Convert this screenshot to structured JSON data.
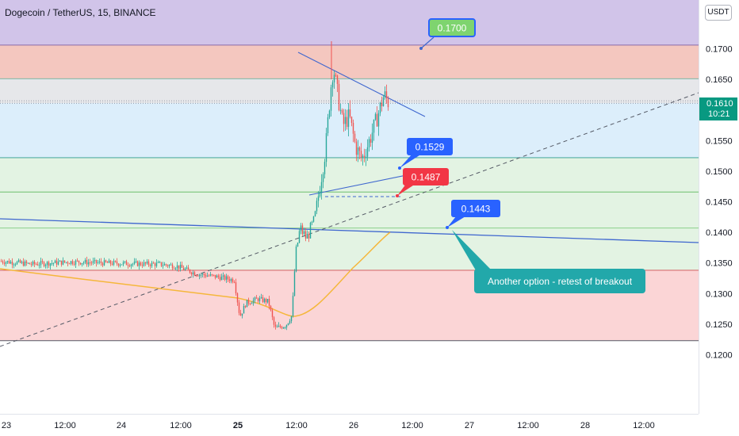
{
  "header": {
    "symbol_title": "Dogecoin / TetherUS, 15, BINANCE",
    "currency": "USDT"
  },
  "colors": {
    "candle_up": "#26a69a",
    "candle_down": "#ef5350",
    "zone_purple": "#d1c4e9",
    "zone_red": "#f4c7bf",
    "zone_grey": "#e6e7ea",
    "zone_blue": "#dceefb",
    "zone_lightgreen": "#e3f3e3",
    "zone_pink": "#fbd5d6",
    "trendline_blue": "#3f67cf",
    "moving_average": "#f5b73b",
    "green_label": "#7ed46f",
    "blue_label": "#2962ff",
    "red_label": "#f23645",
    "teal_callout": "#22a8aa",
    "last_price": "#089981"
  },
  "chart_data": {
    "type": "candlestick",
    "x_ticks": [
      "23",
      "12:00",
      "24",
      "12:00",
      "25",
      "12:00",
      "26",
      "12:00",
      "27",
      "12:00",
      "28",
      "12:00"
    ],
    "y_ticks": [
      "0.1700",
      "0.1650",
      "0.1600",
      "0.1550",
      "0.1500",
      "0.1450",
      "0.1400",
      "0.1350",
      "0.1300",
      "0.1250",
      "0.1200"
    ],
    "y_tick_values": [
      0.17,
      0.165,
      0.16,
      0.155,
      0.15,
      0.145,
      0.14,
      0.135,
      0.13,
      0.125,
      0.12
    ],
    "ylim": [
      0.1185,
      0.1795
    ],
    "last_price": {
      "value": 0.161,
      "label": "0.1610",
      "countdown": "10:21"
    },
    "zones": [
      {
        "name": "purple",
        "from": 0.1706,
        "to": 0.1795
      },
      {
        "name": "red",
        "from": 0.1651,
        "to": 0.1706
      },
      {
        "name": "grey",
        "from": 0.1611,
        "to": 0.1651
      },
      {
        "name": "blue",
        "from": 0.1522,
        "to": 0.1611
      },
      {
        "name": "lightgreen",
        "from": 0.1338,
        "to": 0.1522
      },
      {
        "name": "pink",
        "from": 0.1223,
        "to": 0.1338
      }
    ],
    "horizontal_levels": [
      0.1706,
      0.1651,
      0.1522,
      0.1466,
      0.1407,
      0.1338,
      0.1223
    ],
    "dotted_levels": [
      0.1615,
      0.1611
    ],
    "annotations": [
      {
        "name": "target-label",
        "text": "0.1700",
        "value": 0.17,
        "style": "green"
      },
      {
        "name": "breakout-label",
        "text": "0.1529",
        "value": 0.1529,
        "style": "blue"
      },
      {
        "name": "low-label",
        "text": "0.1487",
        "value": 0.1487,
        "style": "red"
      },
      {
        "name": "retest-label",
        "text": "0.1443",
        "value": 0.1443,
        "style": "blue"
      },
      {
        "name": "retest-callout",
        "text": "Another option - retest of breakout",
        "style": "teal"
      }
    ]
  }
}
